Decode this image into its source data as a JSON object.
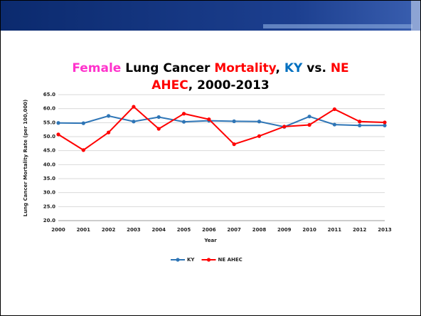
{
  "chart_data": {
    "type": "line",
    "title_lines": [
      [
        {
          "text": "Female",
          "color": "#ff33cc"
        },
        {
          "text": " Lung Cancer ",
          "color": "#000000"
        },
        {
          "text": "Mortality",
          "color": "#ff0000"
        },
        {
          "text": ", ",
          "color": "#000000"
        },
        {
          "text": "KY",
          "color": "#0070c0"
        },
        {
          "text": " vs. ",
          "color": "#000000"
        },
        {
          "text": "NE",
          "color": "#ff0000"
        }
      ],
      [
        {
          "text": "AHEC",
          "color": "#ff0000"
        },
        {
          "text": ", 2000-2013",
          "color": "#000000"
        }
      ]
    ],
    "x_label": "Year",
    "y_label": "Lung Cancer Mortality Rate (per 100,000)",
    "categories": [
      "2000",
      "2001",
      "2002",
      "2003",
      "2004",
      "2005",
      "2006",
      "2007",
      "2008",
      "2009",
      "2010",
      "2011",
      "2012",
      "2013"
    ],
    "series": [
      {
        "name": "KY",
        "color": "#2e75b6",
        "values": [
          54.9,
          54.8,
          57.4,
          55.4,
          57.0,
          55.3,
          55.7,
          55.5,
          55.4,
          53.5,
          57.2,
          54.3,
          54.0,
          54.0
        ]
      },
      {
        "name": "NE AHEC",
        "color": "#ff0000",
        "values": [
          50.8,
          45.2,
          51.5,
          60.7,
          52.8,
          58.2,
          56.2,
          47.3,
          50.2,
          53.6,
          54.2,
          59.8,
          55.4,
          55.1
        ]
      }
    ],
    "ylim": [
      20,
      65
    ],
    "yticks": [
      {
        "value": 20,
        "label": "20.0"
      },
      {
        "value": 25,
        "label": "25.0"
      },
      {
        "value": 30,
        "label": "30.0"
      },
      {
        "value": 35,
        "label": "35.0"
      },
      {
        "value": 40,
        "label": "40.0"
      },
      {
        "value": 45,
        "label": "45.0"
      },
      {
        "value": 50,
        "label": "50.0"
      },
      {
        "value": 55,
        "label": "55.0"
      },
      {
        "value": 60,
        "label": "60.0"
      },
      {
        "value": 65,
        "label": "65.0"
      }
    ],
    "grid": true,
    "legend": "bottom"
  }
}
